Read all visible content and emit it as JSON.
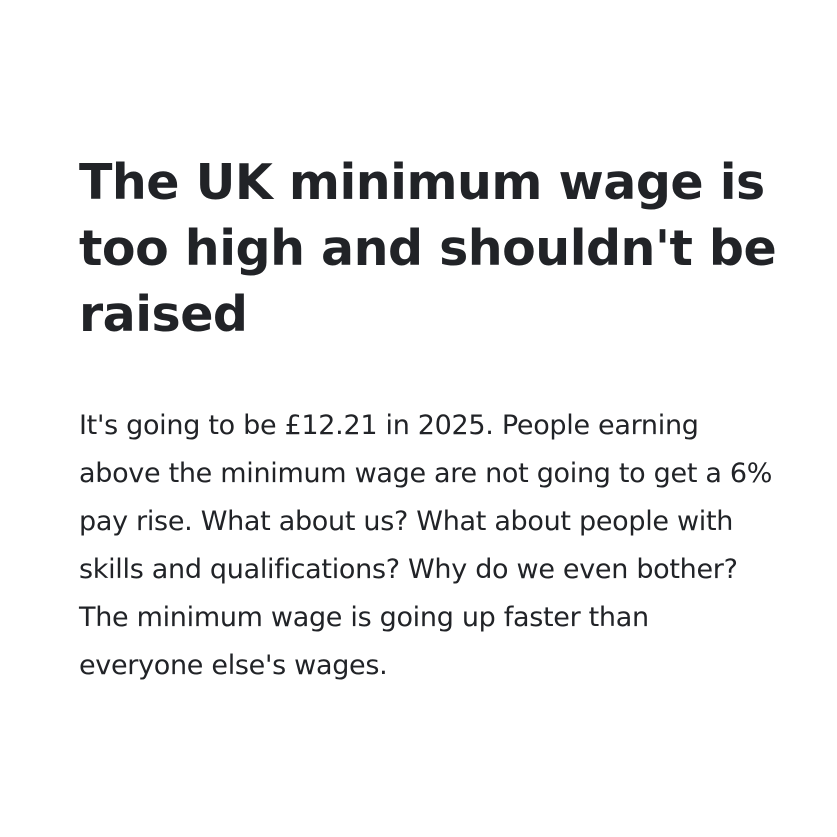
{
  "post": {
    "title": "The UK minimum wage is too high and shouldn't be raised",
    "body": "It's going to be £12.21 in 2025. People earning above the minimum wage are not going to get a 6% pay rise. What about us? What about people with skills and qualifications? Why do we even bother? The minimum wage is going up faster than everyone else's wages."
  },
  "colors": {
    "text": "#212327",
    "background": "#ffffff"
  }
}
